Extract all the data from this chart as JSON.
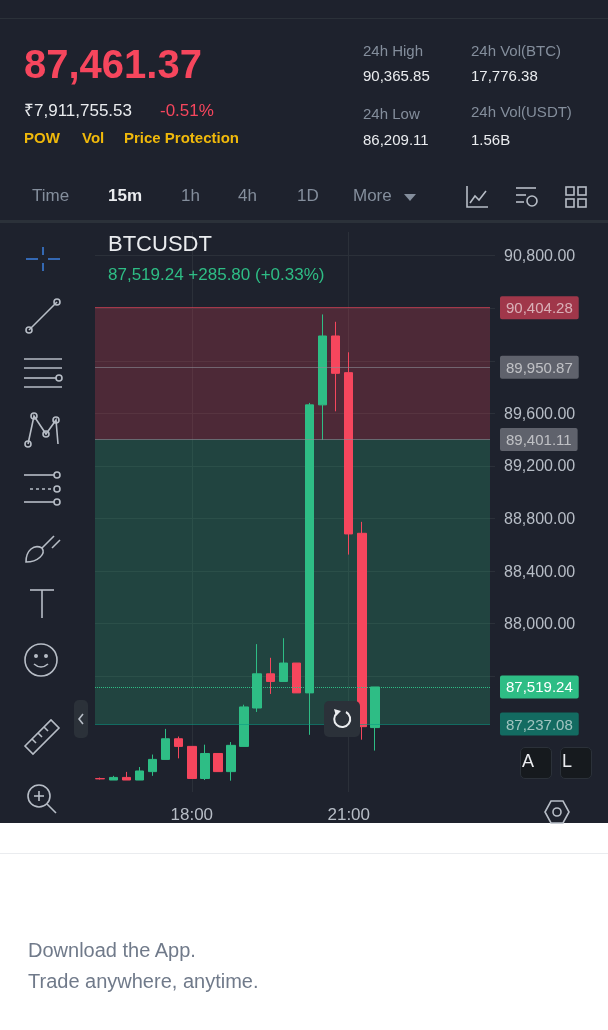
{
  "chart_data": {
    "type": "candlestick",
    "title": "BTCUSDT",
    "subtitle": "87,519.24 +285.80 (+0.33%)",
    "x": [
      16.25,
      16.5,
      16.75,
      17,
      17.25,
      17.5,
      17.75,
      18,
      18.25,
      18.5,
      18.75,
      19,
      19.25,
      19.5,
      19.75,
      20,
      20.25,
      20.5,
      20.75,
      21,
      21.25,
      21.5
    ],
    "ohlc": [
      [
        86822,
        86830,
        86815,
        86820
      ],
      [
        86811,
        86843,
        86811,
        86831
      ],
      [
        86831,
        86873,
        86811,
        86811
      ],
      [
        86811,
        86910,
        86811,
        86880
      ],
      [
        86875,
        87005,
        86843,
        86968
      ],
      [
        86968,
        87200,
        86968,
        87125
      ],
      [
        87125,
        87142,
        86976,
        87067
      ],
      [
        87067,
        87067,
        86823,
        86823
      ],
      [
        86823,
        87080,
        86811,
        87013
      ],
      [
        87013,
        87013,
        86875,
        86875
      ],
      [
        86875,
        87100,
        86806,
        87075
      ],
      [
        87067,
        87384,
        87067,
        87367
      ],
      [
        87359,
        87845,
        87329,
        87619
      ],
      [
        87619,
        87741,
        87466,
        87561
      ],
      [
        87561,
        87890,
        87561,
        87701
      ],
      [
        87701,
        87701,
        87474,
        87474
      ],
      [
        87474,
        89680,
        87155,
        89665
      ],
      [
        89665,
        90353,
        89399,
        90189
      ],
      [
        90189,
        90297,
        89616,
        89905
      ],
      [
        89910,
        90065,
        88526,
        88683
      ],
      [
        88688,
        88775,
        87118,
        87217
      ],
      [
        87210,
        87519,
        87035,
        87519
      ]
    ],
    "xlim": [
      16.15,
      23.7
    ],
    "xticks": [
      {
        "value": 18,
        "label": "18:00"
      },
      {
        "value": 21,
        "label": "21:00"
      }
    ],
    "ylim": [
      86720,
      90980
    ],
    "yticks": [
      {
        "value": 87600,
        "label": null
      },
      {
        "value": 88000,
        "label": "88,000.00"
      },
      {
        "value": 88400,
        "label": "88,400.00"
      },
      {
        "value": 88800,
        "label": "88,800.00"
      },
      {
        "value": 89200,
        "label": "89,200.00"
      },
      {
        "value": 89600,
        "label": "89,600.00"
      },
      {
        "value": 90000,
        "label": null
      },
      {
        "value": 90400,
        "label": null
      },
      {
        "value": 90800,
        "label": "90,800.00"
      }
    ],
    "grid": true,
    "ref_lines": [
      {
        "axis": "y",
        "value": 90404.28,
        "label": "90,404.28",
        "color": "#f6465d"
      },
      {
        "axis": "y",
        "value": 89950.87,
        "label": "89,950.87",
        "color": "#8a8d96"
      },
      {
        "axis": "y",
        "value": 89401.11,
        "label": "89,401.11",
        "color": "#8a8d96"
      },
      {
        "axis": "y",
        "value": 87519.24,
        "label": "87,519.24",
        "color": "#2ebd85",
        "line_style": "dotted"
      },
      {
        "axis": "y",
        "value": 87237.08,
        "label": "87,237.08",
        "color": "#0b9c83"
      }
    ],
    "bands": [
      {
        "axis": "y",
        "from": 89401.11,
        "to": 90404.28,
        "color": "#f6465d"
      },
      {
        "axis": "y",
        "from": 87237.08,
        "to": 89401.11,
        "color": "#2ebd85"
      }
    ],
    "annotations": [
      "87,461.37",
      "₹7,911,755.53",
      "-0.51%",
      "POW",
      "Vol",
      "Price Protection",
      "24h High",
      "90,365.85",
      "24h Vol(BTC)",
      "17,776.38",
      "24h Low",
      "86,209.11",
      "24h Vol(USDT)",
      "1.56B",
      "Time",
      "15m",
      "1h",
      "4h",
      "1D",
      "More",
      "A",
      "L",
      "Download the App.",
      "Trade anywhere, anytime."
    ]
  }
}
